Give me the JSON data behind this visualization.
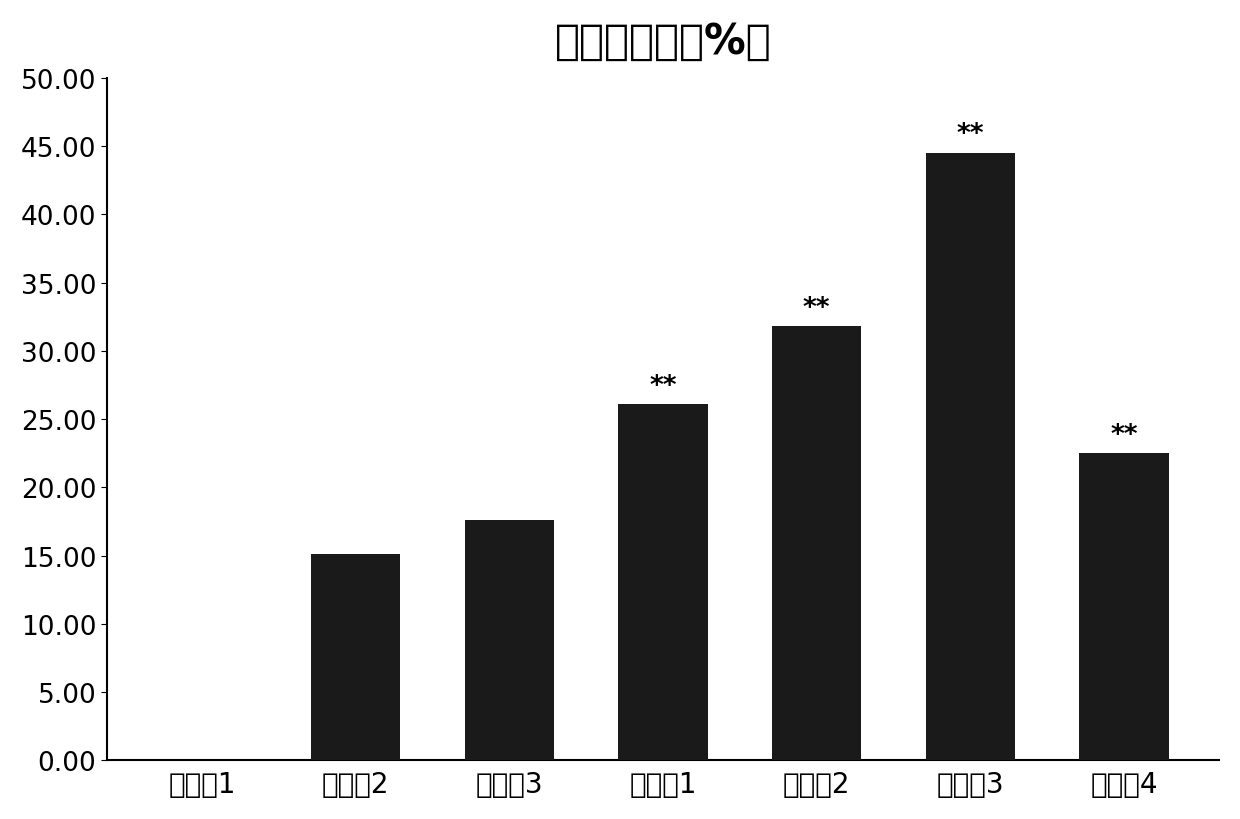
{
  "title": "诱导分化率（%）",
  "categories": [
    "对比例1",
    "对比例2",
    "对比例3",
    "实施例1",
    "实施例2",
    "实施例3",
    "实施例4"
  ],
  "values": [
    0,
    15.1,
    17.6,
    26.1,
    31.8,
    44.5,
    22.5
  ],
  "bar_color": "#1a1a1a",
  "annotations": [
    "",
    "",
    "",
    "**",
    "**",
    "**",
    "**"
  ],
  "ylim": [
    0,
    50
  ],
  "yticks": [
    0.0,
    5.0,
    10.0,
    15.0,
    20.0,
    25.0,
    30.0,
    35.0,
    40.0,
    45.0,
    50.0
  ],
  "ytick_labels": [
    "0.00",
    "5.00",
    "10.00",
    "15.00",
    "20.00",
    "25.00",
    "30.00",
    "35.00",
    "40.00",
    "45.00",
    "50.00"
  ],
  "title_fontsize": 30,
  "tick_fontsize": 19,
  "annot_fontsize": 19,
  "xlabel_fontsize": 20,
  "background_color": "#ffffff"
}
